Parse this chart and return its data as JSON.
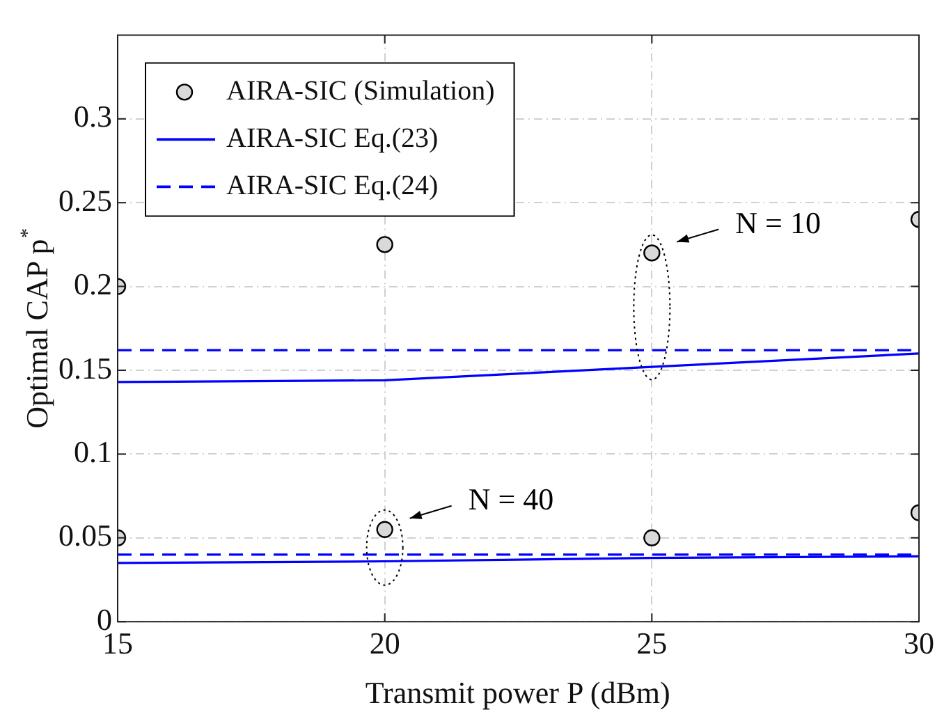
{
  "chart_data": {
    "type": "line",
    "xlabel": "Transmit power P (dBm)",
    "ylabel": "Optimal CAP p$^{*}$",
    "x": [
      15,
      20,
      25,
      30
    ],
    "xlim": [
      15,
      30
    ],
    "xticks": [
      15,
      20,
      25,
      30
    ],
    "ylim": [
      0,
      0.35
    ],
    "yticks": [
      0,
      0.05,
      0.1,
      0.15,
      0.2,
      0.25,
      0.3
    ],
    "grid": true,
    "legend": "top left",
    "series": [
      {
        "name": "AIRA-SIC (Simulation)",
        "type": "scatter",
        "marker": "circle",
        "color": "#d9d9d9",
        "values": [
          0.2,
          0.225,
          0.22,
          0.24
        ]
      },
      {
        "name": "AIRA-SIC Eq.(23)",
        "type": "line",
        "line_style": "solid",
        "color": "#0000ff",
        "values": [
          0.143,
          0.144,
          0.152,
          0.16
        ]
      },
      {
        "name": "AIRA-SIC Eq.(24)",
        "type": "line",
        "line_style": "dashed",
        "color": "#0000ff",
        "values": [
          0.162,
          0.162,
          0.162,
          0.162
        ]
      },
      {
        "type": "scatter",
        "marker": "circle",
        "color": "#d9d9d9",
        "values": [
          0.05,
          0.055,
          0.05,
          0.065
        ]
      },
      {
        "type": "line",
        "line_style": "solid",
        "color": "#0000ff",
        "values": [
          0.035,
          0.036,
          0.038,
          0.039
        ]
      },
      {
        "type": "line",
        "line_style": "dashed",
        "color": "#0000ff",
        "values": [
          0.04,
          0.04,
          0.04,
          0.04
        ]
      }
    ],
    "annotations": [
      {
        "text": "N = 10",
        "x": 25,
        "y": 0.22
      },
      {
        "text": "N = 40",
        "x": 20,
        "y": 0.055
      }
    ]
  }
}
